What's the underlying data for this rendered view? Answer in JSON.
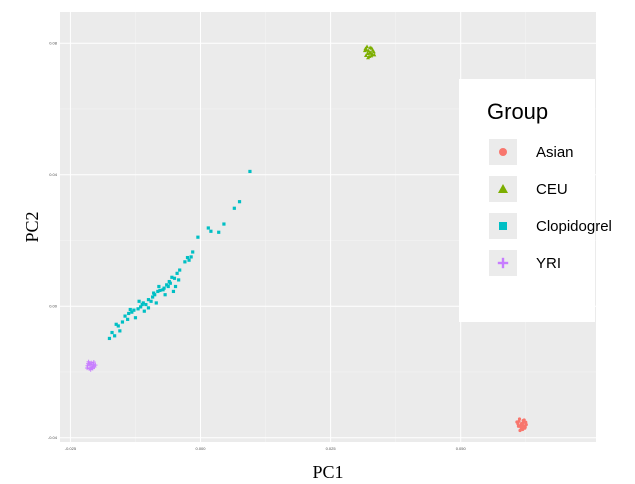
{
  "chart_data": {
    "type": "scatter",
    "title": "",
    "xlabel": "PC1",
    "ylabel": "PC2",
    "xlim": [
      -0.027,
      0.076
    ],
    "ylim": [
      -0.0413,
      0.0895
    ],
    "x_ticks": [
      {
        "value": -0.025,
        "label": "-0.025"
      },
      {
        "value": 0.0,
        "label": "0.000"
      },
      {
        "value": 0.025,
        "label": "0.025"
      },
      {
        "value": 0.05,
        "label": "0.050"
      }
    ],
    "y_ticks": [
      {
        "value": -0.04,
        "label": "-0.04"
      },
      {
        "value": 0.0,
        "label": "0.00"
      },
      {
        "value": 0.04,
        "label": "0.04"
      },
      {
        "value": 0.08,
        "label": "0.08"
      }
    ],
    "grid": true,
    "legend": {
      "title": "Group",
      "position": "right"
    },
    "series": [
      {
        "name": "Asian",
        "marker": "circle",
        "color": "#F8766D",
        "points": [
          [
            0.0616,
            -0.0362
          ],
          [
            0.062,
            -0.0355
          ],
          [
            0.0612,
            -0.035
          ],
          [
            0.0624,
            -0.0368
          ],
          [
            0.0618,
            -0.0372
          ],
          [
            0.061,
            -0.0358
          ],
          [
            0.0622,
            -0.0346
          ],
          [
            0.0615,
            -0.0366
          ],
          [
            0.0626,
            -0.036
          ],
          [
            0.0608,
            -0.0352
          ],
          [
            0.0619,
            -0.0375
          ],
          [
            0.0613,
            -0.0343
          ],
          [
            0.0621,
            -0.0364
          ],
          [
            0.0617,
            -0.0357
          ],
          [
            0.0623,
            -0.0371
          ],
          [
            0.0611,
            -0.0365
          ],
          [
            0.0625,
            -0.0353
          ],
          [
            0.0614,
            -0.0378
          ],
          [
            0.062,
            -0.0348
          ],
          [
            0.0616,
            -0.0369
          ]
        ]
      },
      {
        "name": "CEU",
        "marker": "triangle",
        "color": "#7CAE00",
        "points": [
          [
            0.0323,
            0.0777
          ],
          [
            0.0327,
            0.0772
          ],
          [
            0.0319,
            0.0781
          ],
          [
            0.033,
            0.0766
          ],
          [
            0.0324,
            0.076
          ],
          [
            0.0316,
            0.0778
          ],
          [
            0.0329,
            0.0785
          ],
          [
            0.0321,
            0.0769
          ],
          [
            0.0333,
            0.0774
          ],
          [
            0.0318,
            0.0763
          ],
          [
            0.0326,
            0.0787
          ],
          [
            0.0322,
            0.0756
          ],
          [
            0.0331,
            0.0779
          ],
          [
            0.032,
            0.079
          ],
          [
            0.0328,
            0.0762
          ],
          [
            0.0325,
            0.077
          ],
          [
            0.0317,
            0.0784
          ],
          [
            0.0334,
            0.0765
          ]
        ]
      },
      {
        "name": "Clopidogrel",
        "marker": "square",
        "color": "#00BFC4",
        "points": [
          [
            0.0095,
            0.041
          ],
          [
            0.0075,
            0.0318
          ],
          [
            0.0065,
            0.0298
          ],
          [
            0.0045,
            0.025
          ],
          [
            0.0035,
            0.0225
          ],
          [
            0.0015,
            0.0238
          ],
          [
            0.002,
            0.0228
          ],
          [
            -0.0005,
            0.021
          ],
          [
            -0.0015,
            0.0165
          ],
          [
            -0.0018,
            0.015
          ],
          [
            -0.0022,
            0.014
          ],
          [
            -0.0025,
            0.0148
          ],
          [
            -0.003,
            0.0135
          ],
          [
            -0.004,
            0.011
          ],
          [
            -0.0045,
            0.01
          ],
          [
            -0.005,
            0.0085
          ],
          [
            -0.0055,
            0.0088
          ],
          [
            -0.006,
            0.0075
          ],
          [
            -0.0065,
            0.0065
          ],
          [
            -0.0072,
            0.005
          ],
          [
            -0.0078,
            0.0048
          ],
          [
            -0.0082,
            0.0045
          ],
          [
            -0.0088,
            0.0035
          ],
          [
            -0.0092,
            0.0028
          ],
          [
            -0.01,
            0.002
          ],
          [
            -0.0105,
            0.0005
          ],
          [
            -0.011,
            0.001
          ],
          [
            -0.0115,
            -0.0002
          ],
          [
            -0.012,
            -0.0008
          ],
          [
            -0.0128,
            -0.0012
          ],
          [
            -0.0132,
            -0.0018
          ],
          [
            -0.0138,
            -0.0022
          ],
          [
            -0.0145,
            -0.003
          ],
          [
            -0.015,
            -0.0048
          ],
          [
            -0.0158,
            -0.006
          ],
          [
            -0.0162,
            -0.0055
          ],
          [
            -0.017,
            -0.008
          ],
          [
            -0.0175,
            -0.0098
          ],
          [
            -0.007,
            0.0055
          ],
          [
            -0.0058,
            0.007
          ],
          [
            -0.0048,
            0.006
          ],
          [
            -0.0085,
            0.001
          ],
          [
            -0.0095,
            0.0015
          ],
          [
            -0.0108,
            -0.0015
          ],
          [
            -0.0125,
            -0.0035
          ],
          [
            -0.014,
            -0.004
          ],
          [
            -0.0155,
            -0.0075
          ],
          [
            -0.0165,
            -0.009
          ],
          [
            -0.0068,
            0.0035
          ],
          [
            -0.0052,
            0.0045
          ],
          [
            -0.0118,
            0.0015
          ],
          [
            -0.008,
            0.006
          ],
          [
            -0.009,
            0.004
          ],
          [
            -0.0135,
            -0.001
          ],
          [
            -0.01,
            -0.0005
          ],
          [
            -0.0112,
            0.0005
          ],
          [
            -0.0062,
            0.006
          ],
          [
            -0.0042,
            0.008
          ]
        ]
      },
      {
        "name": "YRI",
        "marker": "plus",
        "color": "#C77CFF",
        "points": [
          [
            -0.0212,
            -0.0178
          ],
          [
            -0.0208,
            -0.0182
          ],
          [
            -0.0216,
            -0.0175
          ],
          [
            -0.0204,
            -0.0185
          ],
          [
            -0.021,
            -0.0172
          ],
          [
            -0.0218,
            -0.0188
          ],
          [
            -0.0206,
            -0.0176
          ],
          [
            -0.0214,
            -0.019
          ],
          [
            -0.0202,
            -0.0179
          ],
          [
            -0.0209,
            -0.0186
          ],
          [
            -0.0215,
            -0.0169
          ],
          [
            -0.0211,
            -0.0193
          ],
          [
            -0.0205,
            -0.017
          ],
          [
            -0.0217,
            -0.0181
          ],
          [
            -0.0207,
            -0.0189
          ],
          [
            -0.0213,
            -0.0174
          ]
        ]
      }
    ]
  }
}
